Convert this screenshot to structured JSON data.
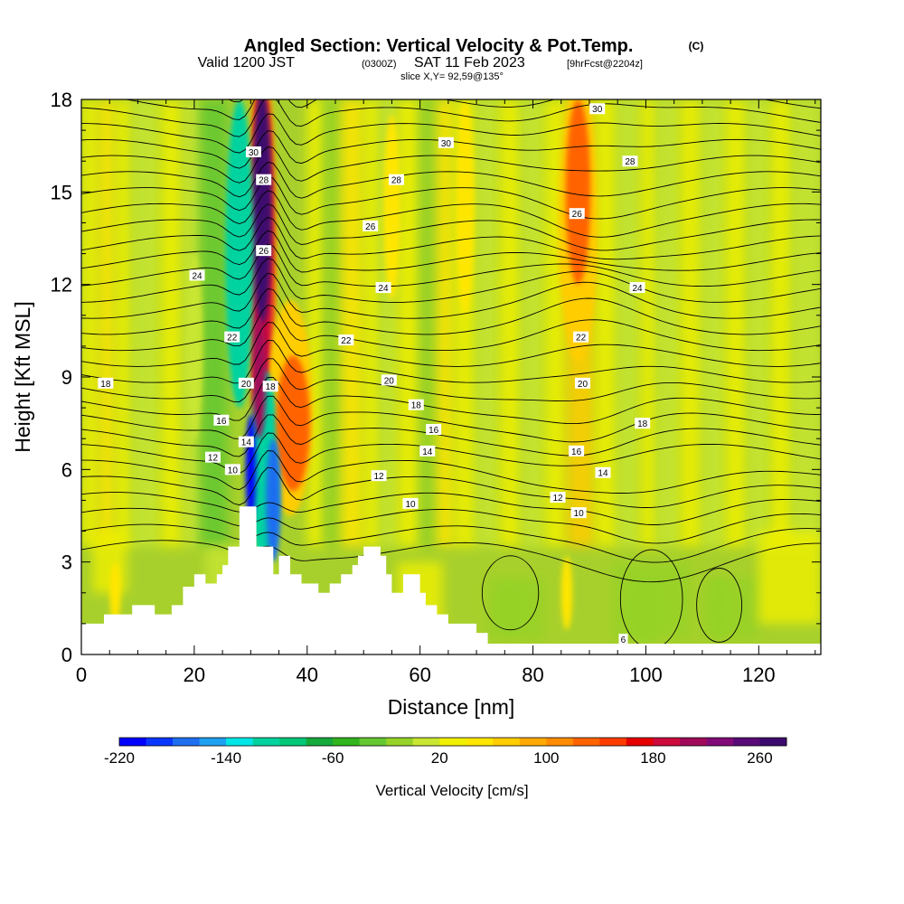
{
  "chart_data": {
    "type": "heatmap",
    "title": "Angled Section: Vertical Velocity & Pot.Temp.",
    "title_unit": "(C)",
    "subtitle_a": "Valid 1200 JST",
    "subtitle_b": "(0300Z)",
    "subtitle_c": "SAT 11 Feb 2023",
    "subtitle_d": "[9hrFcst@2204z]",
    "slice_label": "slice X,Y= 92,59@135°",
    "xlabel": "Distance [nm]",
    "ylabel": "Height [Kft MSL]",
    "xlim": [
      0,
      131
    ],
    "ylim": [
      0,
      18
    ],
    "x_ticks": [
      "0",
      "20",
      "40",
      "60",
      "80",
      "100",
      "120"
    ],
    "y_ticks": [
      "0",
      "3",
      "6",
      "9",
      "12",
      "15",
      "18"
    ],
    "colorbar": {
      "label": "Vertical Velocity [cm/s]",
      "range": [
        -220,
        280
      ],
      "step": 20,
      "tick_labels": [
        "-220",
        "-140",
        "-60",
        "20",
        "100",
        "180",
        "260"
      ],
      "colors": [
        "#0000ff",
        "#0a37ff",
        "#1e6ef0",
        "#1ea0f0",
        "#00e6e6",
        "#00d2a0",
        "#00c878",
        "#14aa3c",
        "#32b41e",
        "#64c832",
        "#96d228",
        "#c8e632",
        "#f0f000",
        "#ffe600",
        "#ffcd00",
        "#ffaa00",
        "#ff8c00",
        "#ff6400",
        "#ff3c00",
        "#e60000",
        "#cd0a3c",
        "#a00a5a",
        "#820a78",
        "#5a0a78",
        "#3c0a6e"
      ]
    },
    "contours_label": "Pot.Temp. (C)",
    "contour_labels": [
      {
        "text": "30",
        "x": 30.5,
        "y": 16.3
      },
      {
        "text": "28",
        "x": 32.3,
        "y": 15.4
      },
      {
        "text": "26",
        "x": 32.3,
        "y": 13.1
      },
      {
        "text": "24",
        "x": 20.5,
        "y": 12.3
      },
      {
        "text": "22",
        "x": 26.7,
        "y": 10.3
      },
      {
        "text": "20",
        "x": 29.2,
        "y": 8.8
      },
      {
        "text": "18",
        "x": 33.5,
        "y": 8.7
      },
      {
        "text": "18",
        "x": 4.3,
        "y": 8.8
      },
      {
        "text": "16",
        "x": 24.8,
        "y": 7.6
      },
      {
        "text": "14",
        "x": 29.2,
        "y": 6.9
      },
      {
        "text": "12",
        "x": 23.3,
        "y": 6.4
      },
      {
        "text": "10",
        "x": 26.8,
        "y": 6.0
      },
      {
        "text": "30",
        "x": 64.6,
        "y": 16.6
      },
      {
        "text": "28",
        "x": 55.8,
        "y": 15.4
      },
      {
        "text": "26",
        "x": 51.2,
        "y": 13.9
      },
      {
        "text": "24",
        "x": 53.5,
        "y": 11.9
      },
      {
        "text": "22",
        "x": 46.9,
        "y": 10.2
      },
      {
        "text": "20",
        "x": 54.5,
        "y": 8.9
      },
      {
        "text": "18",
        "x": 59.3,
        "y": 8.1
      },
      {
        "text": "16",
        "x": 62.4,
        "y": 7.3
      },
      {
        "text": "14",
        "x": 61.3,
        "y": 6.6
      },
      {
        "text": "12",
        "x": 52.7,
        "y": 5.8
      },
      {
        "text": "10",
        "x": 58.3,
        "y": 4.9
      },
      {
        "text": "30",
        "x": 91.4,
        "y": 17.7
      },
      {
        "text": "28",
        "x": 97.2,
        "y": 16.0
      },
      {
        "text": "26",
        "x": 87.8,
        "y": 14.3
      },
      {
        "text": "24",
        "x": 98.5,
        "y": 11.9
      },
      {
        "text": "22",
        "x": 88.5,
        "y": 10.3
      },
      {
        "text": "20",
        "x": 88.8,
        "y": 8.8
      },
      {
        "text": "18",
        "x": 99.4,
        "y": 7.5
      },
      {
        "text": "16",
        "x": 87.7,
        "y": 6.6
      },
      {
        "text": "14",
        "x": 92.4,
        "y": 5.9
      },
      {
        "text": "12",
        "x": 84.4,
        "y": 5.1
      },
      {
        "text": "10",
        "x": 88.1,
        "y": 4.6
      },
      {
        "text": "6",
        "x": 96.0,
        "y": 0.5
      }
    ],
    "series": [
      {
        "name": "Vertical Velocity",
        "values": [
          {
            "x": 32.0,
            "y": 14.5,
            "v": 280
          },
          {
            "x": 31.5,
            "y": 9.0,
            "v": 200
          },
          {
            "x": 37.5,
            "y": 7.5,
            "v": 120
          },
          {
            "x": 30.0,
            "y": 6.0,
            "v": -220
          },
          {
            "x": 34.0,
            "y": 5.0,
            "v": -180
          },
          {
            "x": 28.0,
            "y": 13.0,
            "v": -110
          },
          {
            "x": 88.0,
            "y": 15.0,
            "v": 120
          },
          {
            "x": 68.0,
            "y": 14.5,
            "v": 50
          },
          {
            "x": 55.0,
            "y": 14.5,
            "v": 40
          },
          {
            "x": 6.0,
            "y": 2.0,
            "v": 40
          },
          {
            "x": 86.0,
            "y": 2.0,
            "v": 40
          },
          {
            "x": 100.0,
            "y": 1.5,
            "v": -20
          },
          {
            "x": 113.0,
            "y": 1.5,
            "v": -20
          },
          {
            "x": 76.0,
            "y": 1.5,
            "v": -20
          },
          {
            "x": 20.0,
            "y": 10.0,
            "v": 0
          }
        ]
      }
    ]
  }
}
